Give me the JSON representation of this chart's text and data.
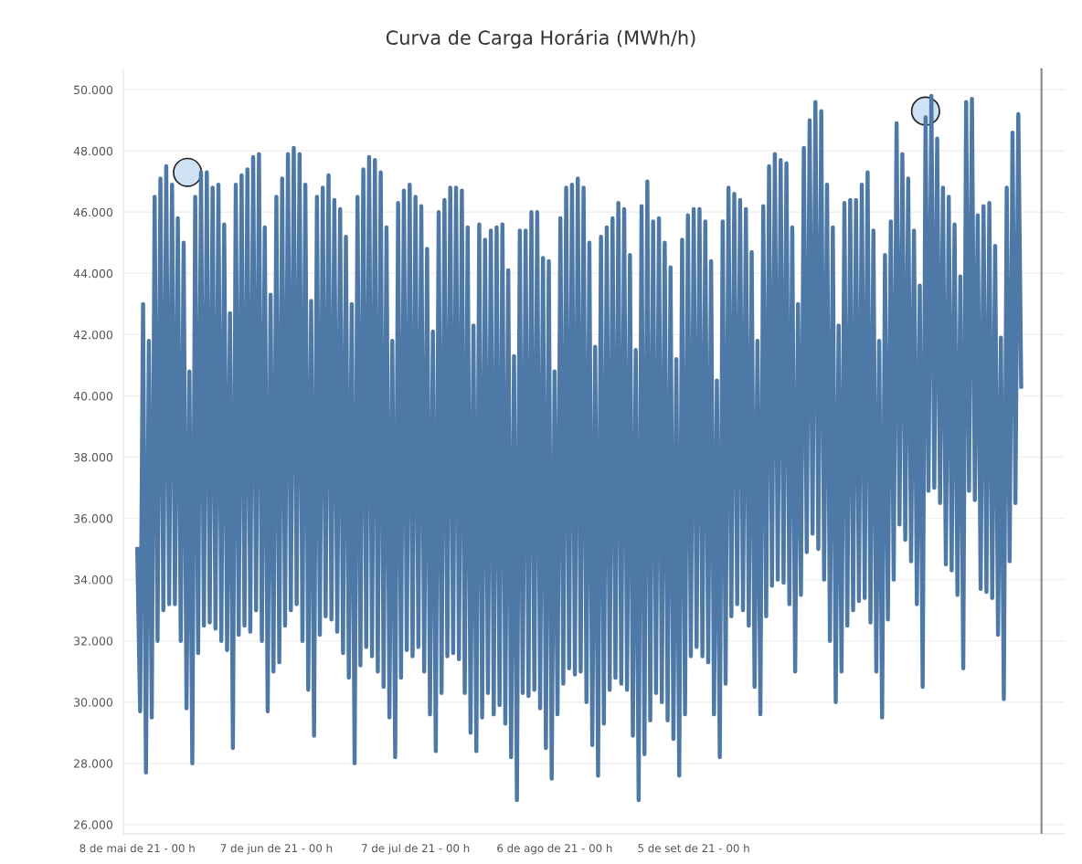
{
  "chart_data": {
    "type": "line",
    "title": "Curva de Carga Horária (MWh/h)",
    "x": [
      "2021-05-08T00:00",
      "2021-05-08T15:00",
      "2021-05-09T06:00",
      "2021-05-09T21:00",
      "2021-05-10T12:00",
      "2021-05-11T03:00",
      "2021-05-11T18:00",
      "2021-05-12T09:00",
      "2021-05-13T00:00",
      "2021-05-13T15:00",
      "2021-05-14T06:00",
      "2021-05-14T21:00",
      "2021-05-15T12:00",
      "2021-05-16T03:00",
      "2021-05-16T18:00",
      "2021-05-17T09:00",
      "2021-05-18T00:00",
      "2021-05-18T15:00",
      "2021-05-19T06:00",
      "2021-05-19T21:00",
      "2021-05-20T12:00",
      "2021-05-21T03:00",
      "2021-05-21T18:00",
      "2021-05-22T09:00",
      "2021-05-23T00:00",
      "2021-05-23T15:00",
      "2021-05-24T06:00",
      "2021-05-24T21:00",
      "2021-05-25T12:00",
      "2021-05-26T03:00",
      "2021-05-26T18:00",
      "2021-05-27T09:00",
      "2021-05-28T00:00",
      "2021-05-28T15:00",
      "2021-05-29T06:00",
      "2021-05-29T21:00",
      "2021-05-30T12:00",
      "2021-05-31T03:00",
      "2021-05-31T18:00",
      "2021-06-01T09:00",
      "2021-06-02T00:00",
      "2021-06-02T15:00",
      "2021-06-03T06:00",
      "2021-06-03T21:00",
      "2021-06-04T12:00",
      "2021-06-05T03:00",
      "2021-06-05T18:00",
      "2021-06-06T09:00",
      "2021-06-07T00:00",
      "2021-06-07T15:00",
      "2021-06-08T06:00",
      "2021-06-08T21:00",
      "2021-06-09T12:00",
      "2021-06-10T03:00",
      "2021-06-10T18:00",
      "2021-06-11T09:00",
      "2021-06-12T00:00",
      "2021-06-12T15:00",
      "2021-06-13T06:00",
      "2021-06-13T21:00",
      "2021-06-14T12:00",
      "2021-06-15T03:00",
      "2021-06-15T18:00",
      "2021-06-16T09:00",
      "2021-06-17T00:00",
      "2021-06-17T15:00",
      "2021-06-18T06:00",
      "2021-06-18T21:00",
      "2021-06-19T12:00",
      "2021-06-20T03:00",
      "2021-06-20T18:00",
      "2021-06-21T09:00",
      "2021-06-22T00:00",
      "2021-06-22T15:00",
      "2021-06-23T06:00",
      "2021-06-23T21:00",
      "2021-06-24T12:00",
      "2021-06-25T03:00",
      "2021-06-25T18:00",
      "2021-06-26T09:00",
      "2021-06-27T00:00",
      "2021-06-27T15:00",
      "2021-06-28T06:00",
      "2021-06-28T21:00",
      "2021-06-29T12:00",
      "2021-06-30T03:00",
      "2021-06-30T18:00",
      "2021-07-01T09:00",
      "2021-07-02T00:00",
      "2021-07-02T15:00",
      "2021-07-03T06:00",
      "2021-07-03T21:00",
      "2021-07-04T12:00",
      "2021-07-05T03:00",
      "2021-07-05T18:00",
      "2021-07-06T09:00",
      "2021-07-07T00:00",
      "2021-07-07T15:00",
      "2021-07-08T06:00",
      "2021-07-08T21:00",
      "2021-07-09T12:00",
      "2021-07-10T03:00",
      "2021-07-10T18:00",
      "2021-07-11T09:00",
      "2021-07-12T00:00",
      "2021-07-12T15:00",
      "2021-07-13T06:00",
      "2021-07-13T21:00",
      "2021-07-14T12:00",
      "2021-07-15T03:00",
      "2021-07-15T18:00",
      "2021-07-16T09:00",
      "2021-07-17T00:00",
      "2021-07-17T15:00",
      "2021-07-18T06:00",
      "2021-07-18T21:00",
      "2021-07-19T12:00",
      "2021-07-20T03:00",
      "2021-07-20T18:00",
      "2021-07-21T09:00",
      "2021-07-22T00:00",
      "2021-07-22T15:00",
      "2021-07-23T06:00",
      "2021-07-23T21:00",
      "2021-07-24T12:00",
      "2021-07-25T03:00",
      "2021-07-25T18:00",
      "2021-07-26T09:00",
      "2021-07-27T00:00",
      "2021-07-27T15:00",
      "2021-07-28T06:00",
      "2021-07-28T21:00",
      "2021-07-29T12:00",
      "2021-07-30T03:00",
      "2021-07-30T18:00",
      "2021-07-31T09:00",
      "2021-08-01T00:00",
      "2021-08-01T15:00",
      "2021-08-02T06:00",
      "2021-08-02T21:00",
      "2021-08-03T12:00",
      "2021-08-04T03:00",
      "2021-08-04T18:00",
      "2021-08-05T09:00",
      "2021-08-06T00:00",
      "2021-08-06T15:00",
      "2021-08-07T06:00",
      "2021-08-07T21:00",
      "2021-08-08T12:00",
      "2021-08-09T03:00",
      "2021-08-09T18:00",
      "2021-08-10T09:00",
      "2021-08-11T00:00",
      "2021-08-11T15:00",
      "2021-08-12T06:00",
      "2021-08-12T21:00",
      "2021-08-13T12:00",
      "2021-08-14T03:00",
      "2021-08-14T18:00",
      "2021-08-15T09:00",
      "2021-08-16T00:00",
      "2021-08-16T15:00",
      "2021-08-17T06:00",
      "2021-08-17T21:00",
      "2021-08-18T12:00",
      "2021-08-19T03:00",
      "2021-08-19T18:00",
      "2021-08-20T09:00",
      "2021-08-21T00:00",
      "2021-08-21T15:00",
      "2021-08-22T06:00",
      "2021-08-22T21:00",
      "2021-08-23T12:00",
      "2021-08-24T03:00",
      "2021-08-24T18:00",
      "2021-08-25T09:00",
      "2021-08-26T00:00",
      "2021-08-26T15:00",
      "2021-08-27T06:00",
      "2021-08-27T21:00",
      "2021-08-28T12:00",
      "2021-08-29T03:00",
      "2021-08-29T18:00",
      "2021-08-30T09:00",
      "2021-08-31T00:00",
      "2021-08-31T15:00",
      "2021-09-01T06:00",
      "2021-09-01T21:00",
      "2021-09-02T12:00",
      "2021-09-03T03:00",
      "2021-09-03T18:00",
      "2021-09-04T09:00",
      "2021-09-05T00:00",
      "2021-09-05T15:00",
      "2021-09-06T06:00",
      "2021-09-06T21:00",
      "2021-09-07T12:00",
      "2021-09-08T03:00",
      "2021-09-08T18:00",
      "2021-09-09T09:00",
      "2021-09-10T00:00",
      "2021-09-10T15:00",
      "2021-09-11T06:00",
      "2021-09-11T21:00",
      "2021-09-12T12:00",
      "2021-09-13T03:00",
      "2021-09-13T18:00",
      "2021-09-14T09:00",
      "2021-09-15T00:00",
      "2021-09-15T15:00",
      "2021-09-16T06:00",
      "2021-09-16T21:00",
      "2021-09-17T12:00",
      "2021-09-18T03:00",
      "2021-09-18T18:00",
      "2021-09-19T09:00",
      "2021-09-20T00:00",
      "2021-09-20T15:00",
      "2021-09-21T06:00",
      "2021-09-21T21:00",
      "2021-09-22T12:00",
      "2021-09-23T03:00",
      "2021-09-23T18:00",
      "2021-09-24T09:00",
      "2021-09-25T00:00",
      "2021-09-25T15:00",
      "2021-09-26T06:00",
      "2021-09-26T21:00",
      "2021-09-27T12:00",
      "2021-09-28T03:00",
      "2021-09-28T18:00",
      "2021-09-29T09:00",
      "2021-09-30T00:00",
      "2021-09-30T15:00",
      "2021-10-01T06:00",
      "2021-10-01T21:00",
      "2021-10-02T12:00",
      "2021-10-03T03:00",
      "2021-10-03T18:00",
      "2021-10-04T09:00",
      "2021-10-05T00:00",
      "2021-10-05T15:00",
      "2021-10-06T06:00",
      "2021-10-06T21:00",
      "2021-10-07T12:00",
      "2021-10-08T03:00",
      "2021-10-08T18:00",
      "2021-10-09T09:00",
      "2021-10-10T00:00",
      "2021-10-10T15:00",
      "2021-10-11T06:00",
      "2021-10-11T21:00",
      "2021-10-12T12:00",
      "2021-10-13T03:00",
      "2021-10-13T18:00",
      "2021-10-14T09:00",
      "2021-10-15T00:00",
      "2021-10-15T15:00",
      "2021-10-16T06:00",
      "2021-10-16T21:00",
      "2021-10-17T12:00",
      "2021-10-18T03:00",
      "2021-10-18T18:00",
      "2021-10-19T09:00",
      "2021-10-20T00:00",
      "2021-10-20T15:00",
      "2021-10-21T06:00",
      "2021-10-21T21:00",
      "2021-10-22T12:00",
      "2021-10-23T03:00",
      "2021-10-23T18:00",
      "2021-10-24T09:00",
      "2021-10-25T00:00",
      "2021-10-25T15:00",
      "2021-10-26T06:00",
      "2021-10-26T21:00",
      "2021-10-27T12:00",
      "2021-10-28T03:00",
      "2021-10-28T18:00",
      "2021-10-29T09:00",
      "2021-10-30T00:00",
      "2021-10-30T15:00",
      "2021-10-31T06:00",
      "2021-10-31T21:00",
      "2021-11-01T12:00",
      "2021-11-02T03:00",
      "2021-11-02T18:00",
      "2021-11-03T09:00",
      "2021-11-04T00:00",
      "2021-11-04T15:00",
      "2021-11-05T06:00",
      "2021-11-05T21:00",
      "2021-11-06T12:00",
      "2021-11-07T03:00",
      "2021-11-07T18:00",
      "2021-11-08T09:00",
      "2021-11-09T00:00",
      "2021-11-09T15:00",
      "2021-11-10T06:00",
      "2021-11-10T21:00",
      "2021-11-11T12:00",
      "2021-11-12T03:00",
      "2021-11-12T18:00",
      "2021-11-13T09:00",
      "2021-11-14T00:00",
      "2021-11-14T15:00"
    ],
    "series": [
      {
        "color": "#4e79a7",
        "values": [
          35000,
          29700,
          43000,
          27700,
          41800,
          29500,
          46500,
          32000,
          47100,
          33000,
          47500,
          33200,
          46900,
          33200,
          45800,
          32000,
          45000,
          29800,
          40800,
          28000,
          46500,
          31600,
          47300,
          32500,
          47300,
          32600,
          46800,
          32400,
          46900,
          32000,
          45600,
          31700,
          42700,
          28500,
          46900,
          32200,
          47200,
          32500,
          47400,
          32300,
          47800,
          33000,
          47900,
          32000,
          45500,
          29700,
          43300,
          31000,
          46500,
          31300,
          47100,
          32500,
          47900,
          33000,
          48100,
          33200,
          47900,
          32000,
          46900,
          30400,
          43100,
          28900,
          46500,
          32200,
          46800,
          32800,
          47200,
          32700,
          46400,
          32300,
          46100,
          31600,
          45200,
          30800,
          43000,
          28000,
          46500,
          31200,
          47400,
          31800,
          47800,
          31500,
          47700,
          31000,
          47300,
          30500,
          45500,
          29500,
          41800,
          28200,
          46300,
          30800,
          46700,
          31700,
          46900,
          31500,
          46500,
          31800,
          46200,
          31000,
          44800,
          29600,
          42100,
          28400,
          46000,
          30300,
          46400,
          31500,
          46800,
          31600,
          46800,
          31400,
          46700,
          30300,
          45500,
          29000,
          42300,
          28400,
          45600,
          29500,
          45100,
          30300,
          45400,
          29600,
          45500,
          29900,
          45600,
          29300,
          44100,
          28200,
          41300,
          26800,
          45400,
          30300,
          45400,
          30200,
          46000,
          30400,
          46000,
          29800,
          44500,
          28500,
          44400,
          27500,
          40800,
          29600,
          45800,
          30600,
          46800,
          31100,
          46900,
          30900,
          47100,
          31000,
          46800,
          30000,
          45000,
          28600,
          41600,
          27600,
          45200,
          29300,
          45500,
          30400,
          45800,
          30800,
          46300,
          30600,
          46100,
          30400,
          44600,
          28900,
          41500,
          26800,
          46200,
          28300,
          47000,
          29400,
          45700,
          30300,
          45800,
          30000,
          45000,
          29400,
          44200,
          28800,
          41200,
          27600,
          45100,
          29600,
          45900,
          31500,
          46100,
          31800,
          46100,
          31500,
          45700,
          31300,
          44400,
          29600,
          40500,
          28200,
          45700,
          30600,
          46800,
          32800,
          46600,
          33200,
          46400,
          33000,
          46100,
          32500,
          44700,
          30500,
          41800,
          29600,
          46200,
          32800,
          47500,
          33800,
          47900,
          34000,
          47700,
          33900,
          47600,
          33200,
          45500,
          31000,
          43000,
          33500,
          48100,
          34900,
          49000,
          35500,
          49600,
          35000,
          49300,
          34000,
          46900,
          32000,
          45500,
          30000,
          42300,
          31000,
          46300,
          32500,
          46400,
          33000,
          46400,
          33300,
          46900,
          33400,
          47300,
          32600,
          45400,
          31000,
          41800,
          29500,
          44600,
          32700,
          45700,
          34000,
          48900,
          35800,
          47900,
          35300,
          47100,
          34600,
          45400,
          33200,
          43600,
          30500,
          49100,
          36900,
          49800,
          37000,
          48400,
          36500,
          46800,
          34500,
          46500,
          34300,
          45600,
          33500,
          43900,
          31100,
          49600,
          36900,
          49700,
          36600,
          45900,
          33700,
          46200,
          33600,
          46300,
          33400,
          44900,
          32200,
          41900,
          30100,
          46800,
          34600,
          48600,
          36500,
          49200,
          40300
        ]
      },
      {
        "type": "scatter",
        "color": "#cfe2f3",
        "marker": "circle",
        "x": [
          "2021-05-18T20:00",
          "2021-10-25T00:00"
        ],
        "values": [
          47300,
          49300
        ]
      }
    ],
    "xlim": [
      "2021-05-05T00:00",
      "2021-11-24T00:00"
    ],
    "xticks": [
      {
        "value": "2021-05-08T00:00",
        "label": "8 de mai de 21 - 00 h"
      },
      {
        "value": "2021-06-07T00:00",
        "label": "7 de jun de 21 - 00 h"
      },
      {
        "value": "2021-07-07T00:00",
        "label": "7 de jul de 21 - 00 h"
      },
      {
        "value": "2021-08-06T00:00",
        "label": "6 de ago de 21 - 00 h"
      },
      {
        "value": "2021-09-05T00:00",
        "label": "5 de set de 21 - 00 h"
      }
    ],
    "ylim": [
      25700,
      50700
    ],
    "yticks": [
      {
        "value": 26000,
        "label": "26.000"
      },
      {
        "value": 28000,
        "label": "28.000"
      },
      {
        "value": 30000,
        "label": "30.000"
      },
      {
        "value": 32000,
        "label": "32.000"
      },
      {
        "value": 34000,
        "label": "34.000"
      },
      {
        "value": 36000,
        "label": "36.000"
      },
      {
        "value": 38000,
        "label": "38.000"
      },
      {
        "value": 40000,
        "label": "40.000"
      },
      {
        "value": 42000,
        "label": "42.000"
      },
      {
        "value": 44000,
        "label": "44.000"
      },
      {
        "value": 46000,
        "label": "46.000"
      },
      {
        "value": 48000,
        "label": "48.000"
      },
      {
        "value": 50000,
        "label": "50.000"
      }
    ],
    "ref_lines": [
      {
        "axis": "x",
        "value": "2021-11-19T00:00",
        "color": "#8c8c8c"
      }
    ],
    "grid": "y"
  }
}
